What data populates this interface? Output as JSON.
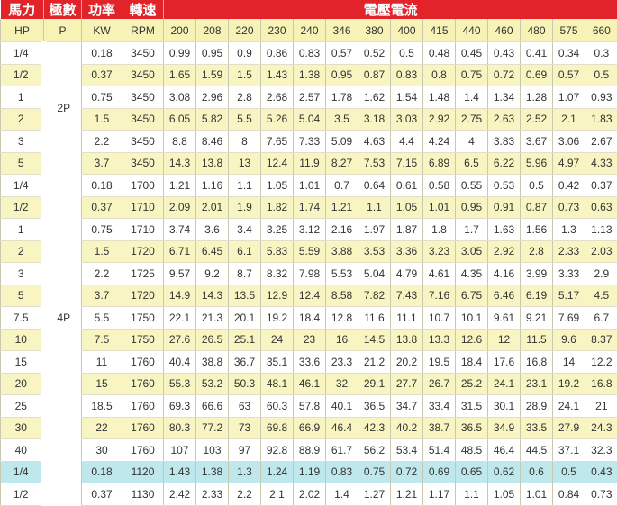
{
  "top_headers": {
    "hp": "馬力",
    "pole": "極數",
    "power": "功率",
    "speed": "轉速",
    "current": "電壓電流"
  },
  "columns": [
    "HP",
    "P",
    "KW",
    "RPM",
    "200",
    "208",
    "220",
    "230",
    "240",
    "346",
    "380",
    "400",
    "415",
    "440",
    "460",
    "480",
    "575",
    "660"
  ],
  "colors": {
    "header_red": "#e2232a",
    "row_yellow": "#f8f5c2",
    "row_teal": "#bfe8ec"
  },
  "groups": [
    {
      "pole": "2P",
      "rows": [
        {
          "hp": "1/4",
          "kw": "0.18",
          "rpm": "3450",
          "bg": "w",
          "a": [
            "0.99",
            "0.95",
            "0.9",
            "0.86",
            "0.83",
            "0.57",
            "0.52",
            "0.5",
            "0.48",
            "0.45",
            "0.43",
            "0.41",
            "0.34",
            "0.3"
          ]
        },
        {
          "hp": "1/2",
          "kw": "0.37",
          "rpm": "3450",
          "bg": "y",
          "a": [
            "1.65",
            "1.59",
            "1.5",
            "1.43",
            "1.38",
            "0.95",
            "0.87",
            "0.83",
            "0.8",
            "0.75",
            "0.72",
            "0.69",
            "0.57",
            "0.5"
          ]
        },
        {
          "hp": "1",
          "kw": "0.75",
          "rpm": "3450",
          "bg": "w",
          "a": [
            "3.08",
            "2.96",
            "2.8",
            "2.68",
            "2.57",
            "1.78",
            "1.62",
            "1.54",
            "1.48",
            "1.4",
            "1.34",
            "1.28",
            "1.07",
            "0.93"
          ]
        },
        {
          "hp": "2",
          "kw": "1.5",
          "rpm": "3450",
          "bg": "y",
          "a": [
            "6.05",
            "5.82",
            "5.5",
            "5.26",
            "5.04",
            "3.5",
            "3.18",
            "3.03",
            "2.92",
            "2.75",
            "2.63",
            "2.52",
            "2.1",
            "1.83"
          ]
        },
        {
          "hp": "3",
          "kw": "2.2",
          "rpm": "3450",
          "bg": "w",
          "a": [
            "8.8",
            "8.46",
            "8",
            "7.65",
            "7.33",
            "5.09",
            "4.63",
            "4.4",
            "4.24",
            "4",
            "3.83",
            "3.67",
            "3.06",
            "2.67"
          ]
        },
        {
          "hp": "5",
          "kw": "3.7",
          "rpm": "3450",
          "bg": "y",
          "a": [
            "14.3",
            "13.8",
            "13",
            "12.4",
            "11.9",
            "8.27",
            "7.53",
            "7.15",
            "6.89",
            "6.5",
            "6.22",
            "5.96",
            "4.97",
            "4.33"
          ]
        }
      ]
    },
    {
      "pole": "4P",
      "rows": [
        {
          "hp": "1/4",
          "kw": "0.18",
          "rpm": "1700",
          "bg": "w",
          "a": [
            "1.21",
            "1.16",
            "1.1",
            "1.05",
            "1.01",
            "0.7",
            "0.64",
            "0.61",
            "0.58",
            "0.55",
            "0.53",
            "0.5",
            "0.42",
            "0.37"
          ]
        },
        {
          "hp": "1/2",
          "kw": "0.37",
          "rpm": "1710",
          "bg": "y",
          "a": [
            "2.09",
            "2.01",
            "1.9",
            "1.82",
            "1.74",
            "1.21",
            "1.1",
            "1.05",
            "1.01",
            "0.95",
            "0.91",
            "0.87",
            "0.73",
            "0.63"
          ]
        },
        {
          "hp": "1",
          "kw": "0.75",
          "rpm": "1710",
          "bg": "w",
          "a": [
            "3.74",
            "3.6",
            "3.4",
            "3.25",
            "3.12",
            "2.16",
            "1.97",
            "1.87",
            "1.8",
            "1.7",
            "1.63",
            "1.56",
            "1.3",
            "1.13"
          ]
        },
        {
          "hp": "2",
          "kw": "1.5",
          "rpm": "1720",
          "bg": "y",
          "a": [
            "6.71",
            "6.45",
            "6.1",
            "5.83",
            "5.59",
            "3.88",
            "3.53",
            "3.36",
            "3.23",
            "3.05",
            "2.92",
            "2.8",
            "2.33",
            "2.03"
          ]
        },
        {
          "hp": "3",
          "kw": "2.2",
          "rpm": "1725",
          "bg": "w",
          "a": [
            "9.57",
            "9.2",
            "8.7",
            "8.32",
            "7.98",
            "5.53",
            "5.04",
            "4.79",
            "4.61",
            "4.35",
            "4.16",
            "3.99",
            "3.33",
            "2.9"
          ]
        },
        {
          "hp": "5",
          "kw": "3.7",
          "rpm": "1720",
          "bg": "y",
          "a": [
            "14.9",
            "14.3",
            "13.5",
            "12.9",
            "12.4",
            "8.58",
            "7.82",
            "7.43",
            "7.16",
            "6.75",
            "6.46",
            "6.19",
            "5.17",
            "4.5"
          ]
        },
        {
          "hp": "7.5",
          "kw": "5.5",
          "rpm": "1750",
          "bg": "w",
          "a": [
            "22.1",
            "21.3",
            "20.1",
            "19.2",
            "18.4",
            "12.8",
            "11.6",
            "11.1",
            "10.7",
            "10.1",
            "9.61",
            "9.21",
            "7.69",
            "6.7"
          ]
        },
        {
          "hp": "10",
          "kw": "7.5",
          "rpm": "1750",
          "bg": "y",
          "a": [
            "27.6",
            "26.5",
            "25.1",
            "24",
            "23",
            "16",
            "14.5",
            "13.8",
            "13.3",
            "12.6",
            "12",
            "11.5",
            "9.6",
            "8.37"
          ]
        },
        {
          "hp": "15",
          "kw": "11",
          "rpm": "1760",
          "bg": "w",
          "a": [
            "40.4",
            "38.8",
            "36.7",
            "35.1",
            "33.6",
            "23.3",
            "21.2",
            "20.2",
            "19.5",
            "18.4",
            "17.6",
            "16.8",
            "14",
            "12.2"
          ]
        },
        {
          "hp": "20",
          "kw": "15",
          "rpm": "1760",
          "bg": "y",
          "a": [
            "55.3",
            "53.2",
            "50.3",
            "48.1",
            "46.1",
            "32",
            "29.1",
            "27.7",
            "26.7",
            "25.2",
            "24.1",
            "23.1",
            "19.2",
            "16.8"
          ]
        },
        {
          "hp": "25",
          "kw": "18.5",
          "rpm": "1760",
          "bg": "w",
          "a": [
            "69.3",
            "66.6",
            "63",
            "60.3",
            "57.8",
            "40.1",
            "36.5",
            "34.7",
            "33.4",
            "31.5",
            "30.1",
            "28.9",
            "24.1",
            "21"
          ]
        },
        {
          "hp": "30",
          "kw": "22",
          "rpm": "1760",
          "bg": "y",
          "a": [
            "80.3",
            "77.2",
            "73",
            "69.8",
            "66.9",
            "46.4",
            "42.3",
            "40.2",
            "38.7",
            "36.5",
            "34.9",
            "33.5",
            "27.9",
            "24.3"
          ]
        },
        {
          "hp": "40",
          "kw": "30",
          "rpm": "1760",
          "bg": "w",
          "a": [
            "107",
            "103",
            "97",
            "92.8",
            "88.9",
            "61.7",
            "56.2",
            "53.4",
            "51.4",
            "48.5",
            "46.4",
            "44.5",
            "37.1",
            "32.3"
          ]
        }
      ]
    },
    {
      "pole": "",
      "rows": [
        {
          "hp": "1/4",
          "kw": "0.18",
          "rpm": "1120",
          "bg": "t",
          "a": [
            "1.43",
            "1.38",
            "1.3",
            "1.24",
            "1.19",
            "0.83",
            "0.75",
            "0.72",
            "0.69",
            "0.65",
            "0.62",
            "0.6",
            "0.5",
            "0.43"
          ]
        },
        {
          "hp": "1/2",
          "kw": "0.37",
          "rpm": "1130",
          "bg": "w",
          "a": [
            "2.42",
            "2.33",
            "2.2",
            "2.1",
            "2.02",
            "1.4",
            "1.27",
            "1.21",
            "1.17",
            "1.1",
            "1.05",
            "1.01",
            "0.84",
            "0.73"
          ]
        }
      ]
    }
  ]
}
